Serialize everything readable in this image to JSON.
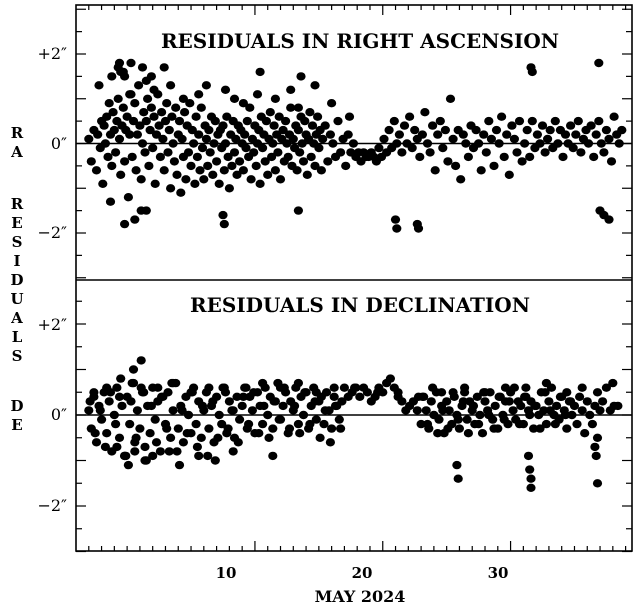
{
  "chart_data": [
    {
      "type": "scatter",
      "title": "RESIDUALS IN RIGHT ASCENSION",
      "xlim": [
        -4,
        39.5
      ],
      "ylim": [
        -3.0,
        3.1
      ],
      "x_ticks": [
        10,
        20,
        30
      ],
      "x_tick_labels": [
        "10",
        "20",
        "30"
      ],
      "y_ticks": [
        -2,
        0,
        2
      ],
      "y_tick_labels": [
        "−2″",
        "0″",
        "+2″"
      ],
      "zero_line": true,
      "x": [
        -3.0,
        -2.8,
        -2.6,
        -2.4,
        -2.3,
        -2.1,
        -2.0,
        -1.9,
        -1.8,
        -1.7,
        -1.6,
        -1.5,
        -1.4,
        -1.3,
        -1.2,
        -1.1,
        -1.0,
        -0.9,
        -0.8,
        -0.7,
        -0.6,
        -0.5,
        -0.4,
        -0.3,
        -0.2,
        -0.1,
        0.0,
        0.1,
        0.2,
        0.3,
        0.4,
        0.5,
        0.6,
        0.7,
        0.8,
        0.9,
        1.0,
        1.1,
        1.2,
        1.3,
        1.4,
        1.5,
        1.6,
        1.7,
        1.8,
        1.9,
        2.0,
        2.1,
        2.2,
        2.3,
        2.4,
        2.5,
        2.6,
        2.7,
        2.8,
        2.9,
        3.0,
        3.1,
        3.2,
        3.3,
        3.4,
        3.5,
        3.6,
        3.7,
        3.8,
        3.9,
        4.0,
        4.1,
        4.2,
        4.3,
        4.4,
        4.5,
        4.6,
        4.7,
        4.8,
        4.9,
        5.0,
        5.1,
        5.2,
        5.3,
        5.4,
        5.5,
        5.6,
        5.7,
        5.8,
        5.9,
        6.0,
        6.1,
        6.2,
        6.3,
        6.4,
        6.5,
        6.6,
        6.7,
        6.8,
        6.9,
        7.0,
        7.1,
        7.2,
        7.3,
        7.4,
        7.5,
        7.6,
        7.7,
        7.8,
        7.9,
        8.0,
        8.1,
        8.2,
        8.3,
        8.4,
        8.5,
        8.6,
        8.7,
        8.8,
        8.9,
        9.0,
        9.1,
        9.2,
        9.3,
        9.4,
        9.5,
        9.6,
        9.7,
        9.8,
        9.9,
        10.0,
        10.1,
        10.2,
        10.3,
        10.4,
        10.5,
        10.6,
        10.7,
        10.8,
        10.9,
        11.0,
        11.1,
        11.2,
        11.3,
        11.4,
        11.5,
        11.6,
        11.7,
        11.8,
        11.9,
        12.0,
        12.1,
        12.2,
        12.3,
        12.4,
        12.5,
        12.6,
        12.7,
        12.8,
        12.9,
        13.0,
        13.1,
        13.2,
        13.3,
        13.4,
        13.5,
        13.6,
        13.7,
        13.8,
        13.9,
        14.0,
        14.1,
        14.2,
        14.3,
        14.4,
        14.5,
        14.6,
        14.7,
        14.8,
        14.9,
        15.0,
        15.1,
        15.2,
        15.3,
        15.5,
        15.7,
        15.9,
        16.1,
        16.3,
        16.5,
        16.7,
        16.9,
        17.1,
        17.3,
        17.5,
        17.7,
        17.9,
        18.1,
        18.3,
        18.5,
        18.7,
        18.9,
        19.1,
        19.3,
        19.5,
        19.7,
        19.9,
        20.1,
        20.3,
        20.5,
        20.7,
        20.9,
        21.1,
        21.3,
        21.5,
        21.7,
        21.9,
        22.1,
        22.3,
        22.5,
        22.7,
        22.9,
        23.1,
        23.3,
        23.5,
        23.7,
        23.9,
        24.1,
        24.3,
        24.5,
        24.7,
        24.9,
        25.1,
        25.3,
        25.5,
        25.7,
        25.9,
        26.1,
        26.3,
        26.5,
        26.7,
        26.9,
        27.1,
        27.3,
        27.5,
        27.7,
        27.9,
        28.1,
        28.3,
        28.5,
        28.7,
        28.9,
        29.1,
        29.3,
        29.5,
        29.7,
        29.9,
        30.1,
        30.3,
        30.5,
        30.7,
        30.9,
        31.1,
        31.3,
        31.5,
        31.7,
        31.9,
        32.1,
        32.3,
        32.5,
        32.7,
        32.9,
        33.1,
        33.3,
        33.5,
        33.7,
        33.9,
        34.1,
        34.3,
        34.5,
        34.7,
        34.9,
        35.1,
        35.3,
        35.5,
        35.7,
        35.9,
        36.1,
        36.3,
        36.5,
        36.7,
        36.9,
        37.1,
        37.3,
        37.5,
        37.7,
        37.9,
        38.1,
        38.3,
        38.5,
        38.7,
        -2.2,
        -1.2,
        -0.3,
        0.2,
        1.5,
        2.1,
        3.4,
        4.4,
        5.6,
        6.2,
        7.7,
        8.4,
        9.1,
        10.2,
        11.6,
        12.8,
        13.4,
        14.7,
        16.0,
        17.4,
        -1.3,
        -0.2,
        0.6,
        1.1,
        1.5,
        7.5,
        7.6,
        13.4,
        21.0,
        22.7,
        21.1,
        22.8,
        37.0,
        37.3,
        37.7,
        -0.7,
        -0.6,
        -0.5,
        -0.2,
        0.3,
        1.2,
        1.9,
        2.9,
        10.4,
        13.6,
        31.6,
        31.7,
        36.9
      ],
      "y": [
        0.1,
        -0.4,
        0.3,
        -0.6,
        0.2,
        -0.1,
        0.5,
        -0.9,
        0.4,
        0.0,
        0.6,
        -0.3,
        0.9,
        0.2,
        -0.5,
        0.7,
        0.3,
        -0.2,
        0.5,
        1.0,
        0.1,
        -0.7,
        0.4,
        0.8,
        -0.4,
        0.3,
        0.6,
        -1.2,
        0.2,
        1.1,
        -0.3,
        0.5,
        0.9,
        -0.6,
        0.2,
        1.3,
        0.4,
        -0.8,
        0.0,
        0.7,
        -0.2,
        0.5,
        1.0,
        -0.5,
        0.3,
        0.8,
        -0.1,
        0.6,
        -0.9,
        0.2,
        1.1,
        0.4,
        -0.3,
        0.7,
        0.1,
        -0.6,
        0.5,
        0.9,
        -0.2,
        0.3,
        -1.0,
        0.6,
        0.0,
        -0.4,
        0.8,
        -0.7,
        0.2,
        0.5,
        -1.1,
        0.1,
        -0.3,
        0.7,
        -0.8,
        0.4,
        -0.2,
        0.9,
        -0.5,
        0.3,
        0.0,
        -0.9,
        0.6,
        -0.3,
        0.2,
        -0.6,
        0.8,
        -0.1,
        -0.8,
        0.4,
        0.1,
        -0.5,
        0.3,
        -0.2,
        0.6,
        -0.7,
        0.0,
        0.5,
        -0.4,
        0.2,
        -0.9,
        0.3,
        -0.1,
        0.4,
        -0.6,
        0.0,
        0.6,
        -0.3,
        -1.0,
        0.2,
        -0.5,
        0.5,
        -0.2,
        0.1,
        -0.7,
        0.4,
        -0.4,
        0.3,
        0.0,
        -0.6,
        0.2,
        -0.1,
        0.5,
        -0.3,
        0.8,
        -0.8,
        0.1,
        -0.2,
        0.4,
        -0.5,
        0.0,
        0.3,
        -0.9,
        0.6,
        -0.1,
        0.2,
        -0.4,
        0.5,
        -0.7,
        0.1,
        0.7,
        -0.3,
        0.0,
        0.4,
        -0.6,
        0.2,
        -0.2,
        0.6,
        -0.8,
        0.1,
        0.3,
        -0.4,
        0.5,
        0.0,
        -0.3,
        0.2,
        0.8,
        -0.5,
        0.1,
        -0.1,
        0.4,
        -0.6,
        0.3,
        -0.2,
        0.6,
        0.0,
        -0.4,
        0.5,
        0.2,
        -0.7,
        0.1,
        0.7,
        -0.3,
        0.4,
        0.0,
        -0.5,
        0.2,
        0.6,
        -0.1,
        0.3,
        -0.6,
        0.1,
        0.4,
        -0.4,
        0.2,
        0.0,
        -0.3,
        0.5,
        -0.2,
        0.1,
        -0.5,
        0.2,
        -0.2,
        0.0,
        -0.3,
        -0.2,
        -0.4,
        -0.2,
        -0.3,
        -0.3,
        -0.2,
        -0.3,
        -0.4,
        -0.1,
        -0.3,
        0.1,
        -0.2,
        0.3,
        -0.1,
        0.5,
        0.0,
        0.2,
        -0.2,
        0.4,
        0.0,
        0.6,
        -0.1,
        0.3,
        0.1,
        -0.3,
        0.2,
        0.7,
        0.0,
        -0.2,
        0.4,
        -0.6,
        0.2,
        0.5,
        -0.1,
        0.3,
        -0.4,
        1.0,
        0.1,
        -0.5,
        0.3,
        -0.8,
        0.2,
        0.0,
        -0.3,
        0.4,
        -0.1,
        0.3,
        0.0,
        -0.6,
        0.2,
        -0.2,
        0.5,
        0.1,
        -0.5,
        0.3,
        0.0,
        0.6,
        -0.3,
        0.2,
        -0.7,
        0.4,
        0.1,
        -0.2,
        0.5,
        -0.4,
        0.0,
        0.3,
        -0.3,
        0.5,
        -0.1,
        0.2,
        0.0,
        0.4,
        -0.2,
        0.1,
        0.3,
        -0.1,
        0.5,
        0.0,
        0.3,
        -0.3,
        0.2,
        0.0,
        0.4,
        -0.1,
        0.2,
        0.5,
        -0.2,
        0.1,
        0.3,
        0.0,
        0.4,
        -0.3,
        0.2,
        0.5,
        0.0,
        -0.2,
        0.3,
        0.1,
        -0.4,
        0.6,
        0.2,
        0.0,
        0.3,
        1.3,
        1.5,
        1.6,
        1.1,
        1.4,
        1.2,
        1.3,
        1.0,
        1.1,
        1.3,
        1.2,
        1.0,
        0.9,
        1.1,
        1.0,
        1.2,
        0.8,
        1.3,
        0.9,
        0.6,
        -1.3,
        -1.8,
        -1.7,
        -1.5,
        -1.5,
        -1.6,
        -1.8,
        -1.5,
        -1.7,
        -1.8,
        -1.9,
        -1.9,
        -1.5,
        -1.6,
        -1.7,
        1.7,
        1.8,
        1.6,
        1.5,
        1.8,
        1.7,
        1.5,
        1.7,
        1.6,
        1.5,
        1.7,
        1.6,
        1.8
      ]
    },
    {
      "type": "scatter",
      "title": "RESIDUALS IN DECLINATION",
      "xlim": [
        -4,
        39.5
      ],
      "ylim": [
        -3.0,
        3.1
      ],
      "x_ticks": [
        10,
        20,
        30
      ],
      "x_tick_labels": [
        "10",
        "20",
        "30"
      ],
      "y_ticks": [
        -2,
        0,
        2
      ],
      "y_tick_labels": [
        "−2″",
        "0″",
        "+2″"
      ],
      "zero_line": true,
      "xlabel": "MAY 2024",
      "x": [
        -3.0,
        -2.8,
        -2.6,
        -2.4,
        -2.2,
        -2.0,
        -1.8,
        -1.6,
        -1.4,
        -1.2,
        -1.0,
        -0.8,
        -0.6,
        -0.4,
        -0.2,
        0.0,
        0.2,
        0.4,
        0.6,
        0.8,
        1.0,
        1.2,
        1.4,
        1.6,
        1.8,
        2.0,
        2.2,
        2.4,
        2.6,
        2.8,
        3.0,
        3.2,
        3.4,
        3.6,
        3.8,
        4.0,
        4.2,
        4.4,
        4.6,
        4.8,
        5.0,
        5.2,
        5.4,
        5.6,
        5.8,
        6.0,
        6.2,
        6.4,
        6.6,
        6.8,
        7.0,
        7.2,
        7.4,
        7.6,
        7.8,
        8.0,
        8.2,
        8.4,
        8.6,
        8.8,
        9.0,
        9.2,
        9.4,
        9.6,
        9.8,
        10.0,
        10.2,
        10.4,
        10.6,
        10.8,
        11.0,
        11.2,
        11.4,
        11.6,
        11.8,
        12.0,
        12.2,
        12.4,
        12.6,
        12.8,
        13.0,
        13.2,
        13.4,
        13.6,
        13.8,
        14.0,
        14.2,
        14.4,
        14.6,
        14.8,
        15.0,
        15.2,
        15.4,
        15.6,
        15.8,
        16.0,
        16.2,
        16.4,
        16.6,
        16.8,
        17.0,
        17.3,
        17.6,
        17.9,
        18.2,
        18.5,
        18.8,
        19.1,
        19.4,
        19.7,
        20.0,
        20.3,
        20.6,
        20.9,
        21.2,
        21.5,
        21.8,
        22.1,
        22.4,
        22.7,
        23.0,
        23.2,
        23.4,
        23.6,
        23.8,
        24.0,
        24.2,
        24.4,
        24.6,
        24.8,
        25.0,
        25.2,
        25.4,
        25.6,
        25.8,
        26.0,
        26.2,
        26.4,
        26.6,
        26.8,
        27.0,
        27.2,
        27.4,
        27.6,
        27.8,
        28.0,
        28.2,
        28.4,
        28.6,
        28.8,
        29.0,
        29.2,
        29.4,
        29.6,
        29.8,
        30.0,
        30.2,
        30.4,
        30.6,
        30.8,
        31.0,
        31.2,
        31.4,
        31.6,
        31.8,
        32.0,
        32.2,
        32.4,
        32.6,
        32.8,
        33.0,
        33.2,
        33.4,
        33.6,
        33.8,
        34.0,
        34.2,
        34.4,
        34.6,
        34.8,
        35.0,
        35.2,
        35.4,
        35.6,
        35.8,
        36.0,
        36.2,
        36.4,
        36.6,
        36.8,
        37.0,
        37.2,
        37.5,
        37.8,
        38.1,
        38.4,
        -2.9,
        -2.5,
        -2.1,
        -1.7,
        -1.3,
        -0.9,
        -0.5,
        -0.1,
        0.3,
        0.7,
        1.1,
        1.5,
        1.9,
        2.3,
        2.7,
        3.1,
        3.5,
        3.9,
        4.3,
        4.7,
        5.1,
        5.5,
        5.9,
        6.3,
        6.7,
        7.1,
        7.5,
        7.9,
        8.3,
        8.7,
        9.1,
        9.5,
        9.9,
        10.3,
        10.7,
        11.1,
        11.5,
        11.9,
        12.3,
        12.7,
        13.1,
        13.5,
        13.9,
        14.3,
        14.7,
        15.1,
        15.5,
        15.9,
        16.3,
        16.7,
        23.1,
        23.5,
        23.9,
        24.3,
        24.7,
        25.1,
        25.5,
        25.9,
        26.3,
        26.7,
        27.1,
        27.5,
        27.9,
        28.3,
        28.7,
        29.1,
        29.5,
        29.9,
        30.3,
        30.7,
        31.1,
        31.5,
        31.9,
        32.3,
        32.7,
        33.1,
        33.5,
        33.9,
        34.3,
        34.7,
        -2.6,
        -1.6,
        -0.6,
        0.5,
        1.3,
        2.4,
        3.6,
        5.0,
        6.4,
        7.7,
        9.3,
        10.6,
        12.0,
        13.4,
        14.8,
        16.2,
        17.8,
        19.6,
        21.2,
        22.8,
        24.6,
        26.4,
        28.0,
        29.6,
        31.2,
        32.8,
        34.4,
        35.6,
        36.8,
        38.0,
        -0.8,
        -0.2,
        0.1,
        0.6,
        1.4,
        2.0,
        3.3,
        4.1,
        5.6,
        6.9,
        8.3,
        11.4,
        25.8,
        25.9,
        31.4,
        31.5,
        31.6,
        31.6,
        36.6,
        36.7,
        36.8,
        0.5,
        1.1
      ],
      "y": [
        0.1,
        -0.3,
        0.4,
        -0.6,
        0.2,
        -0.1,
        0.5,
        -0.4,
        0.3,
        -0.8,
        0.0,
        0.6,
        -0.5,
        0.2,
        -0.9,
        0.4,
        -0.2,
        0.7,
        -0.6,
        0.1,
        -0.3,
        0.5,
        -0.7,
        0.2,
        -0.4,
        0.6,
        -0.1,
        0.3,
        -0.8,
        0.4,
        -0.2,
        0.5,
        -0.5,
        0.1,
        0.7,
        -0.3,
        0.2,
        -0.6,
        0.4,
        0.0,
        -0.4,
        0.6,
        -0.2,
        0.3,
        -0.5,
        0.1,
        0.5,
        -0.3,
        0.2,
        -0.6,
        0.4,
        0.0,
        -0.2,
        0.6,
        -0.4,
        0.3,
        0.1,
        -0.5,
        0.4,
        -0.1,
        0.2,
        0.6,
        -0.3,
        0.4,
        0.1,
        -0.4,
        0.5,
        0.2,
        -0.2,
        0.6,
        0.0,
        0.4,
        -0.3,
        0.3,
        0.7,
        -0.1,
        0.2,
        0.5,
        -0.4,
        0.3,
        0.1,
        0.6,
        -0.2,
        0.4,
        0.0,
        0.5,
        -0.3,
        0.2,
        0.6,
        -0.1,
        0.3,
        0.4,
        -0.2,
        0.5,
        0.1,
        -0.3,
        0.4,
        0.2,
        -0.1,
        0.3,
        0.6,
        0.4,
        0.5,
        0.6,
        0.4,
        0.6,
        0.5,
        0.3,
        0.4,
        0.6,
        0.5,
        0.7,
        0.8,
        0.6,
        0.5,
        0.3,
        0.1,
        0.2,
        0.3,
        0.1,
        -0.2,
        0.4,
        0.1,
        -0.3,
        0.3,
        0.0,
        0.5,
        -0.1,
        0.2,
        -0.4,
        0.3,
        0.1,
        -0.2,
        0.4,
        0.0,
        -0.3,
        0.2,
        0.5,
        -0.1,
        0.3,
        0.1,
        -0.2,
        0.4,
        0.0,
        -0.4,
        0.3,
        0.1,
        0.5,
        -0.1,
        0.2,
        -0.3,
        0.4,
        0.0,
        0.3,
        -0.2,
        0.5,
        0.1,
        -0.1,
        0.3,
        0.2,
        -0.2,
        0.4,
        0.1,
        0.3,
        -0.3,
        0.2,
        0.0,
        0.5,
        0.1,
        -0.2,
        0.3,
        0.6,
        0.0,
        0.2,
        -0.1,
        0.4,
        0.1,
        -0.3,
        0.3,
        0.0,
        0.2,
        -0.2,
        0.4,
        0.1,
        -0.4,
        0.3,
        0.0,
        -0.2,
        0.2,
        -0.5,
        0.1,
        0.3,
        0.6,
        0.1,
        0.2,
        0.2,
        0.3,
        -0.4,
        0.1,
        -0.7,
        0.5,
        -0.2,
        0.8,
        -0.9,
        0.3,
        -0.5,
        0.6,
        -1.0,
        0.2,
        -0.6,
        0.4,
        -0.3,
        0.7,
        -0.8,
        0.1,
        -0.4,
        0.5,
        -0.7,
        0.2,
        -0.9,
        0.3,
        -0.5,
        0.6,
        -0.3,
        0.1,
        -0.6,
        0.4,
        -0.2,
        0.5,
        -0.4,
        0.2,
        -0.5,
        0.3,
        -0.1,
        0.6,
        -0.3,
        0.2,
        -0.4,
        0.5,
        -0.2,
        0.3,
        -0.5,
        0.1,
        -0.6,
        0.2,
        -0.3,
        0.4,
        -0.2,
        0.6,
        -0.4,
        0.1,
        -0.3,
        0.5,
        -0.1,
        0.3,
        -0.4,
        0.2,
        -0.2,
        0.5,
        0.0,
        -0.3,
        0.4,
        -0.1,
        0.3,
        0.6,
        -0.2,
        0.4,
        0.0,
        0.2,
        -0.3,
        0.5,
        0.1,
        -0.2,
        0.4,
        0.0,
        0.3,
        0.5,
        0.6,
        0.4,
        0.7,
        0.5,
        0.6,
        0.7,
        0.5,
        0.6,
        0.5,
        0.6,
        0.7,
        0.6,
        0.7,
        0.5,
        0.6,
        0.6,
        0.5,
        0.4,
        0.4,
        0.5,
        0.6,
        0.5,
        0.6,
        0.6,
        0.7,
        0.5,
        0.6,
        0.5,
        0.7,
        -0.7,
        -0.9,
        -1.1,
        -0.8,
        -1.0,
        -0.9,
        -0.8,
        -1.1,
        -0.9,
        -1.0,
        -0.8,
        -0.9,
        -1.1,
        -1.4,
        -0.9,
        -1.2,
        -1.4,
        -1.6,
        -0.7,
        -0.9,
        -1.5,
        1.0,
        1.2
      ]
    }
  ],
  "y_axis_label_top": [
    "R",
    "A"
  ],
  "y_axis_label_bottom": [
    "R",
    "E",
    "S",
    "I",
    "D",
    "U",
    "A",
    "L",
    "S"
  ],
  "y_axis_label_de": [
    "D",
    "E"
  ],
  "colors": {
    "ink": "#000000",
    "background": "#ffffff"
  }
}
